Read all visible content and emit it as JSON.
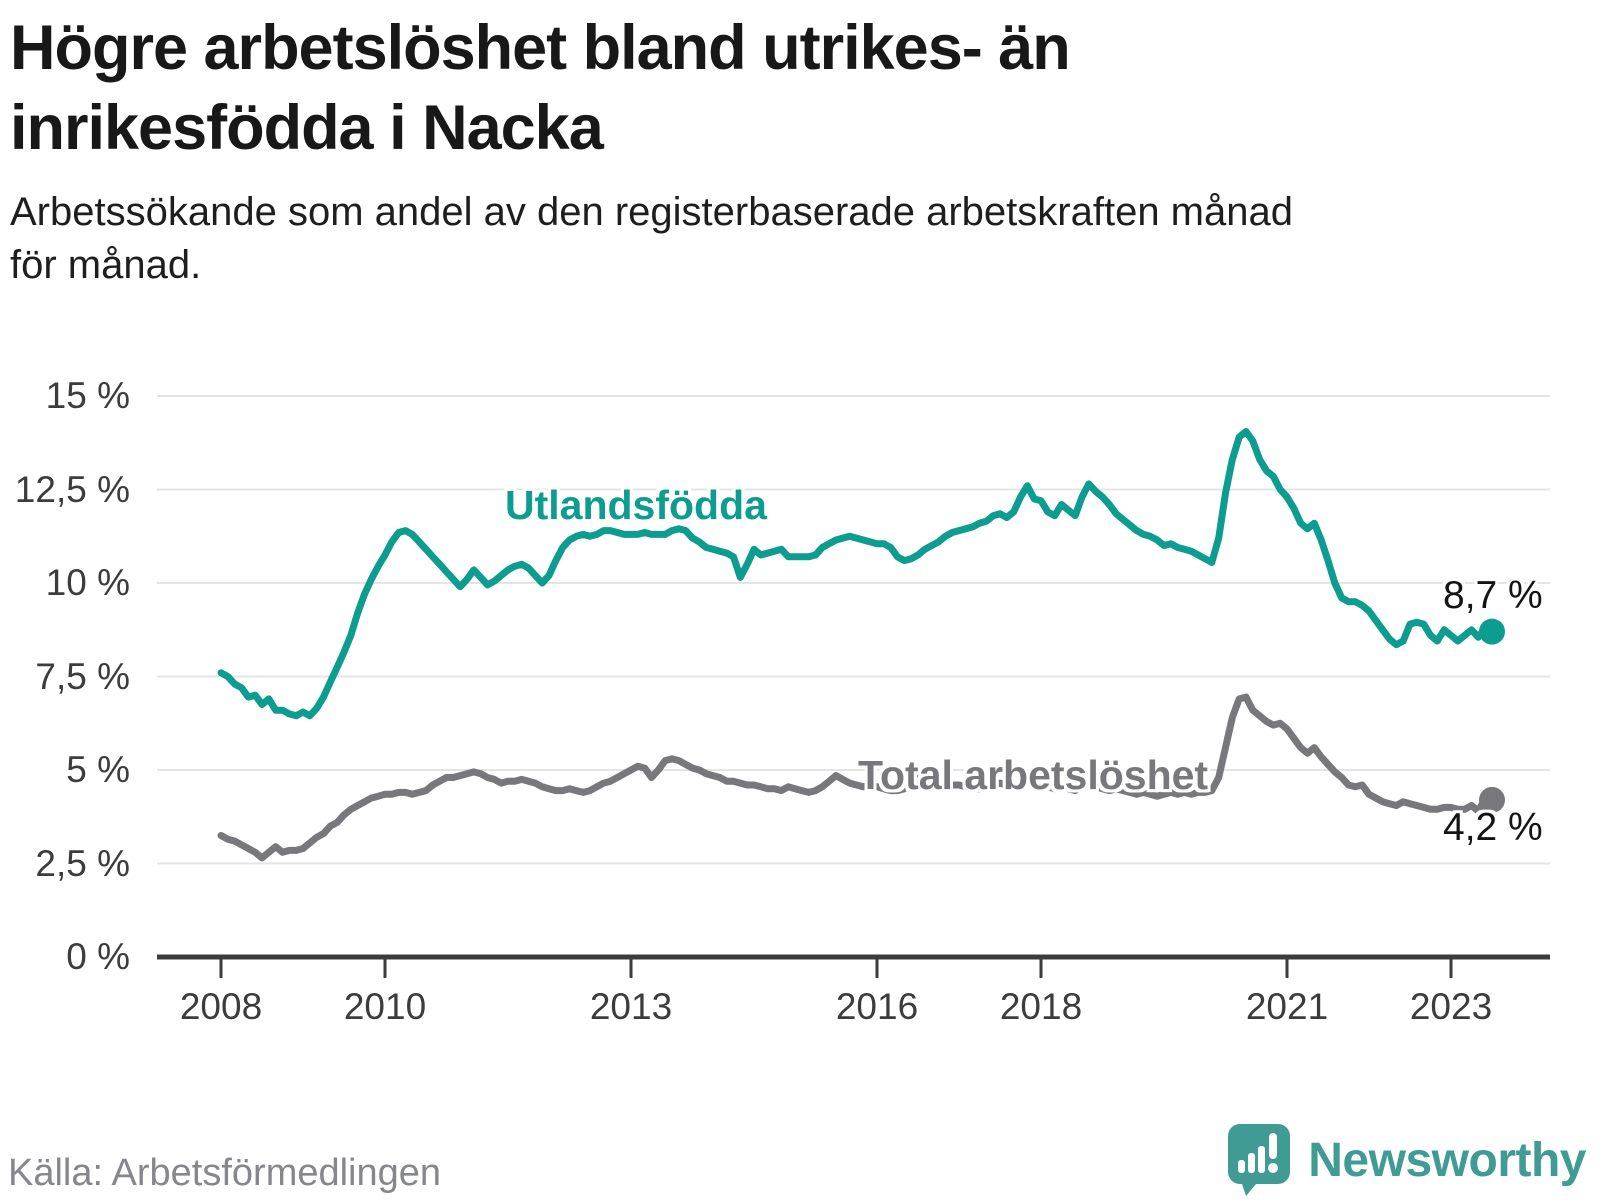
{
  "title_lines": [
    "Högre arbetslöshet bland utrikes- än",
    "inrikesfödda i Nacka"
  ],
  "subtitle_lines": [
    "Arbetssökande som andel av den registerbaserade arbetskraften månad",
    "för månad."
  ],
  "source": "Källa: Arbetsförmedlingen",
  "logo": {
    "text": "Newsworthy",
    "color": "#3f9b94",
    "icon": "speech-bubble-bar-chart-icon"
  },
  "colors": {
    "foreign_born_line": "#0d9c90",
    "total_line": "#77777c",
    "grid": "#e4e4e4",
    "axis": "#3b3b3b",
    "tick_text": "#3c3c3c",
    "value_text": "#141414"
  },
  "chart_data": {
    "type": "line",
    "title": "Högre arbetslöshet bland utrikes- än inrikesfödda i Nacka",
    "xlabel": "",
    "ylabel": "",
    "ylim": [
      0,
      15
    ],
    "grid": "horizontal",
    "legend_position": "inline-labels",
    "x_axis": {
      "start_year": 2008,
      "start_month": 1,
      "end_year": 2023,
      "end_month": 7,
      "ticks": [
        {
          "year": 2008,
          "label": "2008"
        },
        {
          "year": 2010,
          "label": "2010"
        },
        {
          "year": 2013,
          "label": "2013"
        },
        {
          "year": 2016,
          "label": "2016"
        },
        {
          "year": 2018,
          "label": "2018"
        },
        {
          "year": 2021,
          "label": "2021"
        },
        {
          "year": 2023,
          "label": "2023"
        }
      ]
    },
    "y_axis": {
      "unit": "%",
      "ticks": [
        {
          "value": 0,
          "label": "0 %"
        },
        {
          "value": 2.5,
          "label": "2,5 %"
        },
        {
          "value": 5,
          "label": "5 %"
        },
        {
          "value": 7.5,
          "label": "7,5 %"
        },
        {
          "value": 10,
          "label": "10 %"
        },
        {
          "value": 12.5,
          "label": "12,5 %"
        },
        {
          "value": 15,
          "label": "15 %"
        }
      ]
    },
    "series": [
      {
        "name": "Utlandsfödda",
        "color": "#0d9c90",
        "end_label": "8,7 %",
        "end_value": 8.7,
        "values": [
          7.6,
          7.5,
          7.3,
          7.2,
          6.95,
          7.0,
          6.75,
          6.9,
          6.6,
          6.6,
          6.5,
          6.45,
          6.55,
          6.45,
          6.65,
          6.95,
          7.35,
          7.75,
          8.15,
          8.6,
          9.2,
          9.7,
          10.1,
          10.45,
          10.75,
          11.1,
          11.35,
          11.4,
          11.3,
          11.1,
          10.9,
          10.7,
          10.5,
          10.3,
          10.1,
          9.9,
          10.1,
          10.35,
          10.15,
          9.95,
          10.05,
          10.2,
          10.35,
          10.45,
          10.5,
          10.4,
          10.2,
          10.0,
          10.2,
          10.6,
          10.95,
          11.15,
          11.25,
          11.3,
          11.25,
          11.3,
          11.4,
          11.4,
          11.35,
          11.3,
          11.3,
          11.3,
          11.35,
          11.3,
          11.3,
          11.3,
          11.4,
          11.45,
          11.4,
          11.2,
          11.1,
          10.95,
          10.9,
          10.85,
          10.8,
          10.7,
          10.15,
          10.5,
          10.9,
          10.75,
          10.8,
          10.85,
          10.9,
          10.7,
          10.7,
          10.7,
          10.7,
          10.75,
          10.95,
          11.05,
          11.15,
          11.2,
          11.25,
          11.2,
          11.15,
          11.1,
          11.05,
          11.05,
          10.95,
          10.7,
          10.6,
          10.65,
          10.75,
          10.9,
          11.0,
          11.1,
          11.25,
          11.35,
          11.4,
          11.45,
          11.5,
          11.6,
          11.65,
          11.8,
          11.85,
          11.75,
          11.9,
          12.3,
          12.6,
          12.25,
          12.2,
          11.9,
          11.8,
          12.1,
          11.95,
          11.8,
          12.3,
          12.65,
          12.45,
          12.3,
          12.1,
          11.85,
          11.7,
          11.55,
          11.4,
          11.3,
          11.25,
          11.15,
          11.0,
          11.05,
          10.95,
          10.9,
          10.85,
          10.75,
          10.65,
          10.55,
          11.2,
          12.4,
          13.3,
          13.9,
          14.05,
          13.8,
          13.3,
          13.0,
          12.85,
          12.5,
          12.3,
          12.0,
          11.6,
          11.45,
          11.6,
          11.15,
          10.6,
          10.0,
          9.6,
          9.5,
          9.5,
          9.4,
          9.25,
          9.0,
          8.75,
          8.5,
          8.35,
          8.45,
          8.9,
          8.95,
          8.9,
          8.6,
          8.45,
          8.75,
          8.6,
          8.45,
          8.6,
          8.75,
          8.55,
          8.8,
          8.7
        ]
      },
      {
        "name": "Total arbetslöshet",
        "color": "#77777c",
        "end_label": "4,2 %",
        "end_value": 4.2,
        "values": [
          3.25,
          3.15,
          3.1,
          3.0,
          2.9,
          2.8,
          2.65,
          2.8,
          2.95,
          2.8,
          2.85,
          2.85,
          2.9,
          3.05,
          3.2,
          3.3,
          3.5,
          3.6,
          3.8,
          3.95,
          4.05,
          4.15,
          4.25,
          4.3,
          4.35,
          4.35,
          4.4,
          4.4,
          4.35,
          4.4,
          4.45,
          4.6,
          4.7,
          4.8,
          4.8,
          4.85,
          4.9,
          4.95,
          4.9,
          4.8,
          4.75,
          4.65,
          4.7,
          4.7,
          4.75,
          4.7,
          4.65,
          4.55,
          4.5,
          4.45,
          4.45,
          4.5,
          4.45,
          4.4,
          4.45,
          4.55,
          4.65,
          4.7,
          4.8,
          4.9,
          5.0,
          5.1,
          5.05,
          4.8,
          5.0,
          5.25,
          5.3,
          5.25,
          5.15,
          5.05,
          5.0,
          4.9,
          4.85,
          4.8,
          4.7,
          4.7,
          4.65,
          4.6,
          4.6,
          4.55,
          4.5,
          4.5,
          4.45,
          4.55,
          4.5,
          4.45,
          4.4,
          4.45,
          4.55,
          4.7,
          4.85,
          4.75,
          4.65,
          4.6,
          4.55,
          4.6,
          4.55,
          4.5,
          4.45,
          4.45,
          4.5,
          4.6,
          4.75,
          4.9,
          4.8,
          4.7,
          4.65,
          4.6,
          4.6,
          4.55,
          4.5,
          4.5,
          4.55,
          4.6,
          4.65,
          4.6,
          4.55,
          4.6,
          4.65,
          4.6,
          4.6,
          4.55,
          4.5,
          4.55,
          4.5,
          4.45,
          4.55,
          4.6,
          4.55,
          4.5,
          4.45,
          4.5,
          4.45,
          4.4,
          4.35,
          4.4,
          4.35,
          4.3,
          4.35,
          4.4,
          4.35,
          4.4,
          4.35,
          4.4,
          4.4,
          4.45,
          4.8,
          5.6,
          6.4,
          6.9,
          6.95,
          6.6,
          6.45,
          6.3,
          6.2,
          6.25,
          6.1,
          5.85,
          5.6,
          5.45,
          5.6,
          5.35,
          5.15,
          4.95,
          4.8,
          4.6,
          4.55,
          4.6,
          4.35,
          4.25,
          4.15,
          4.1,
          4.05,
          4.15,
          4.1,
          4.05,
          4.0,
          3.95,
          3.95,
          4.0,
          4.0,
          3.95,
          3.95,
          4.05,
          3.9,
          4.25,
          4.2
        ]
      }
    ]
  }
}
